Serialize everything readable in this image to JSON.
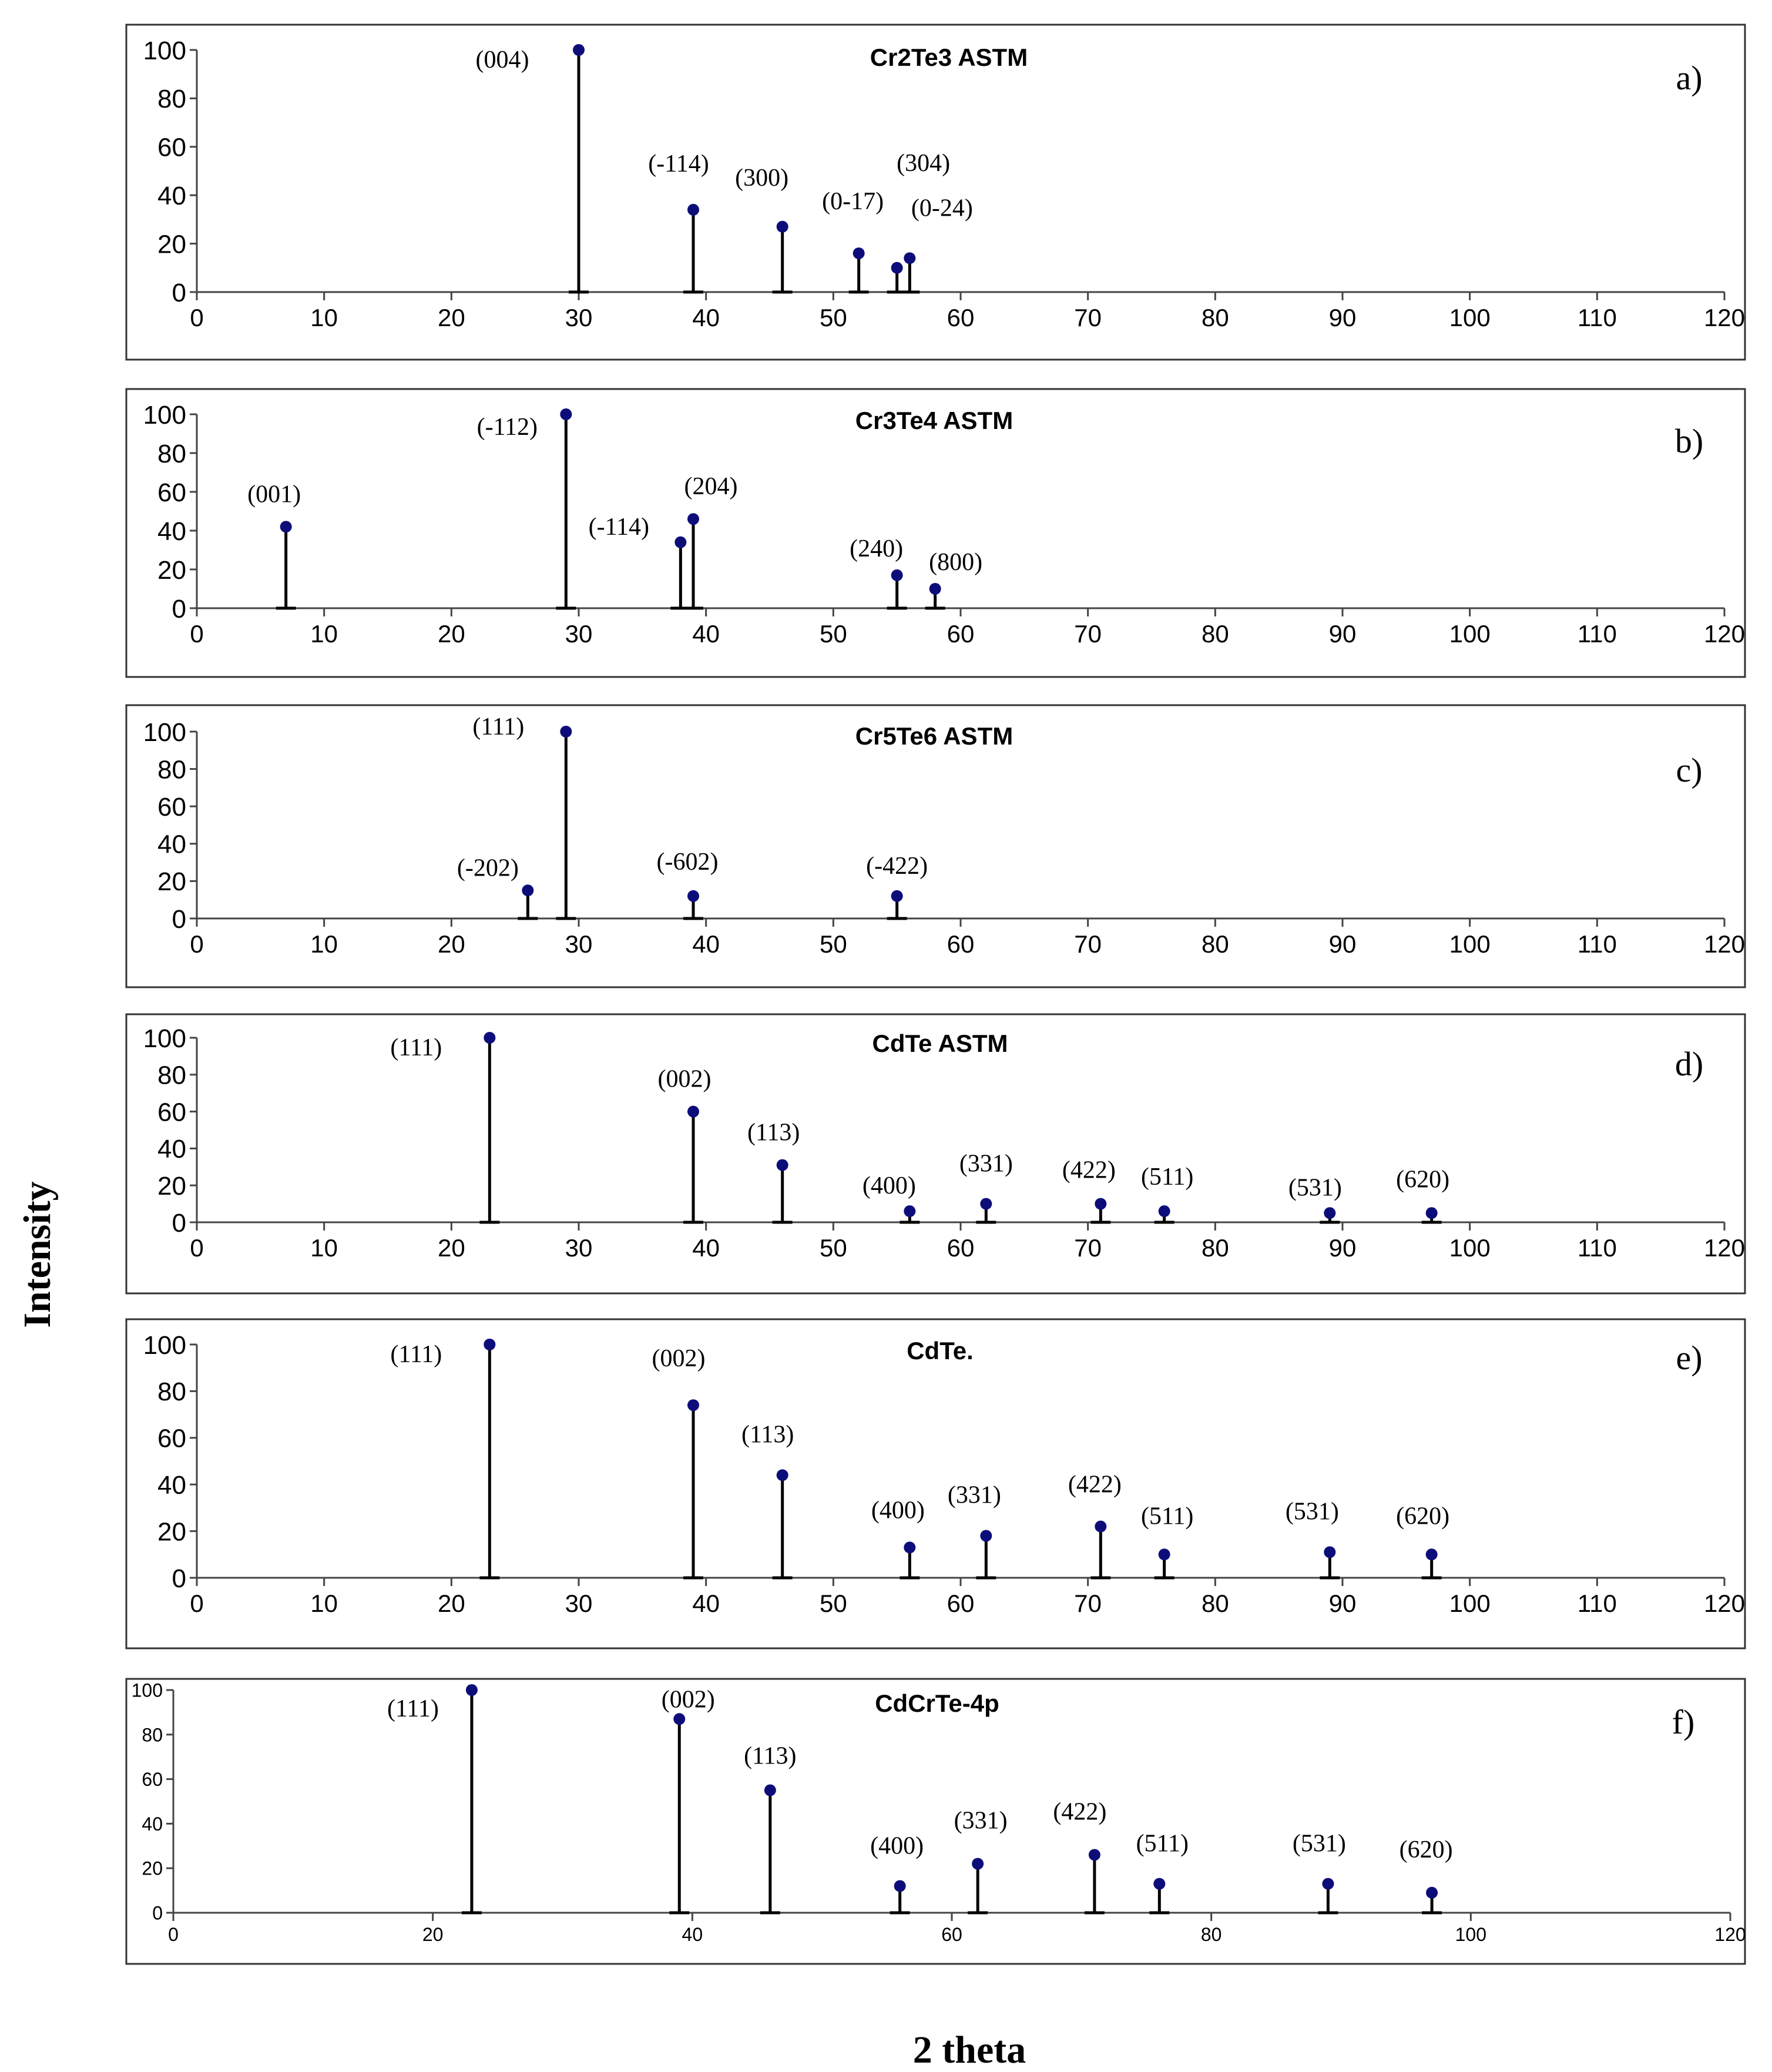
{
  "figure": {
    "ylabel": "Intensity",
    "xlabel": "2 theta"
  },
  "colors": {
    "marker": "#0d0d7a",
    "stem": "#000000",
    "frame": "#333333"
  },
  "chart_data": [
    {
      "type": "stem",
      "title": "Cr2Te3 ASTM",
      "panel_letter": "a)",
      "xlim": [
        0,
        120
      ],
      "ylim": [
        0,
        100
      ],
      "xticks": [
        0,
        10,
        20,
        30,
        40,
        50,
        60,
        70,
        80,
        90,
        100,
        110,
        120
      ],
      "yticks": [
        0,
        20,
        40,
        60,
        80,
        100
      ],
      "peaks": [
        {
          "x": 30,
          "y": 100,
          "label": "(004)"
        },
        {
          "x": 39,
          "y": 34,
          "label": "(-114)"
        },
        {
          "x": 46,
          "y": 27,
          "label": "(300)"
        },
        {
          "x": 52,
          "y": 16,
          "label": "(0-17)"
        },
        {
          "x": 55,
          "y": 10,
          "label": "(304)"
        },
        {
          "x": 56,
          "y": 14,
          "label": "(0-24)"
        }
      ]
    },
    {
      "type": "stem",
      "title": "Cr3Te4 ASTM",
      "panel_letter": "b)",
      "xlim": [
        0,
        120
      ],
      "ylim": [
        0,
        100
      ],
      "xticks": [
        0,
        10,
        20,
        30,
        40,
        50,
        60,
        70,
        80,
        90,
        100,
        110,
        120
      ],
      "yticks": [
        0,
        20,
        40,
        60,
        80,
        100
      ],
      "peaks": [
        {
          "x": 7,
          "y": 42,
          "label": "(001)"
        },
        {
          "x": 29,
          "y": 100,
          "label": "(-112)"
        },
        {
          "x": 38,
          "y": 34,
          "label": "(-114)"
        },
        {
          "x": 39,
          "y": 46,
          "label": "(204)"
        },
        {
          "x": 55,
          "y": 17,
          "label": "(240)"
        },
        {
          "x": 58,
          "y": 10,
          "label": "(800)"
        }
      ]
    },
    {
      "type": "stem",
      "title": "Cr5Te6 ASTM",
      "panel_letter": "c)",
      "xlim": [
        0,
        120
      ],
      "ylim": [
        0,
        100
      ],
      "xticks": [
        0,
        10,
        20,
        30,
        40,
        50,
        60,
        70,
        80,
        90,
        100,
        110,
        120
      ],
      "yticks": [
        0,
        20,
        40,
        60,
        80,
        100
      ],
      "peaks": [
        {
          "x": 26,
          "y": 15,
          "label": "(-202)"
        },
        {
          "x": 29,
          "y": 100,
          "label": "(111)"
        },
        {
          "x": 39,
          "y": 12,
          "label": "(-602)"
        },
        {
          "x": 55,
          "y": 12,
          "label": "(-422)"
        }
      ]
    },
    {
      "type": "stem",
      "title": "CdTe ASTM",
      "panel_letter": "d)",
      "xlim": [
        0,
        120
      ],
      "ylim": [
        0,
        100
      ],
      "xticks": [
        0,
        10,
        20,
        30,
        40,
        50,
        60,
        70,
        80,
        90,
        100,
        110,
        120
      ],
      "yticks": [
        0,
        20,
        40,
        60,
        80,
        100
      ],
      "peaks": [
        {
          "x": 23,
          "y": 100,
          "label": "(111)"
        },
        {
          "x": 39,
          "y": 60,
          "label": "(002)"
        },
        {
          "x": 46,
          "y": 31,
          "label": "(113)"
        },
        {
          "x": 56,
          "y": 6,
          "label": "(400)"
        },
        {
          "x": 62,
          "y": 10,
          "label": "(331)"
        },
        {
          "x": 71,
          "y": 10,
          "label": "(422)"
        },
        {
          "x": 76,
          "y": 6,
          "label": "(511)"
        },
        {
          "x": 89,
          "y": 5,
          "label": "(531)"
        },
        {
          "x": 97,
          "y": 5,
          "label": "(620)"
        }
      ]
    },
    {
      "type": "stem",
      "title": "CdTe.",
      "panel_letter": "e)",
      "xlim": [
        0,
        120
      ],
      "ylim": [
        0,
        100
      ],
      "xticks": [
        0,
        10,
        20,
        30,
        40,
        50,
        60,
        70,
        80,
        90,
        100,
        110,
        120
      ],
      "yticks": [
        0,
        20,
        40,
        60,
        80,
        100
      ],
      "peaks": [
        {
          "x": 23,
          "y": 100,
          "label": "(111)"
        },
        {
          "x": 39,
          "y": 74,
          "label": "(002)"
        },
        {
          "x": 46,
          "y": 44,
          "label": "(113)"
        },
        {
          "x": 56,
          "y": 13,
          "label": "(400)"
        },
        {
          "x": 62,
          "y": 18,
          "label": "(331)"
        },
        {
          "x": 71,
          "y": 22,
          "label": "(422)"
        },
        {
          "x": 76,
          "y": 10,
          "label": "(511)"
        },
        {
          "x": 89,
          "y": 11,
          "label": "(531)"
        },
        {
          "x": 97,
          "y": 10,
          "label": "(620)"
        }
      ]
    },
    {
      "type": "stem",
      "title": "CdCrTe-4p",
      "panel_letter": "f)",
      "xlim": [
        0,
        120
      ],
      "ylim": [
        0,
        100
      ],
      "xticks": [
        0,
        20,
        40,
        60,
        80,
        100,
        120
      ],
      "yticks": [
        0,
        20,
        40,
        60,
        80,
        100
      ],
      "peaks": [
        {
          "x": 23,
          "y": 100,
          "label": "(111)"
        },
        {
          "x": 39,
          "y": 87,
          "label": "(002)"
        },
        {
          "x": 46,
          "y": 55,
          "label": "(113)"
        },
        {
          "x": 56,
          "y": 12,
          "label": "(400)"
        },
        {
          "x": 62,
          "y": 22,
          "label": "(331)"
        },
        {
          "x": 71,
          "y": 26,
          "label": "(422)"
        },
        {
          "x": 76,
          "y": 13,
          "label": "(511)"
        },
        {
          "x": 89,
          "y": 13,
          "label": "(531)"
        },
        {
          "x": 97,
          "y": 9,
          "label": "(620)"
        }
      ]
    }
  ]
}
